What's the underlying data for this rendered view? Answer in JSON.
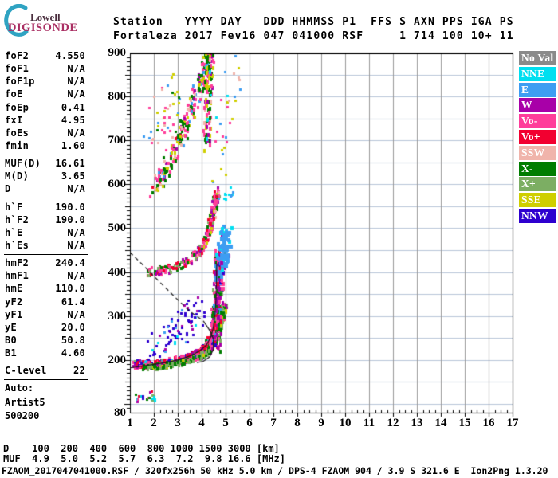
{
  "logo": {
    "line1": "Lowell",
    "line2": "DIGISONDE",
    "arc_color": "#2fa3c2"
  },
  "header": {
    "line1": "Station   YYYY DAY   DDD HHMMSS P1  FFS S AXN PPS IGA PS",
    "line2": "Fortaleza 2017 Fev16 047 041000 RSF     1 714 100 10+ 11"
  },
  "params": {
    "items": [
      {
        "label": "foF2",
        "value": "4.550"
      },
      {
        "label": "foF1",
        "value": "N/A"
      },
      {
        "label": "foF1p",
        "value": "N/A"
      },
      {
        "label": "foE",
        "value": "N/A"
      },
      {
        "label": "foEp",
        "value": "0.41"
      },
      {
        "label": "fxI",
        "value": "4.95"
      },
      {
        "label": "foEs",
        "value": "N/A"
      },
      {
        "label": "fmin",
        "value": "1.60"
      },
      {
        "rule": true
      },
      {
        "label": "MUF(D)",
        "value": "16.61"
      },
      {
        "label": "M(D)",
        "value": "3.65"
      },
      {
        "label": "D",
        "value": "N/A"
      },
      {
        "rule": true
      },
      {
        "label": "h`F",
        "value": "190.0"
      },
      {
        "label": "h`F2",
        "value": "190.0"
      },
      {
        "label": "h`E",
        "value": "N/A"
      },
      {
        "label": "h`Es",
        "value": "N/A"
      },
      {
        "rule": true
      },
      {
        "label": "hmF2",
        "value": "240.4"
      },
      {
        "label": "hmF1",
        "value": "N/A"
      },
      {
        "label": "hmE",
        "value": "110.0"
      },
      {
        "label": "yF2",
        "value": "61.4"
      },
      {
        "label": "yF1",
        "value": "N/A"
      },
      {
        "label": "yE",
        "value": "20.0"
      },
      {
        "label": "B0",
        "value": "50.8"
      },
      {
        "label": "B1",
        "value": "4.60"
      },
      {
        "rule": true
      },
      {
        "label": "C-level",
        "value": "22"
      },
      {
        "rule": true
      }
    ],
    "auto_block": [
      "Auto:",
      "Artist5",
      "500200"
    ]
  },
  "legend": {
    "items": [
      {
        "label": "No Val",
        "color": "#8a8a8a"
      },
      {
        "label": "NNE",
        "color": "#00dff0"
      },
      {
        "label": "E",
        "color": "#3d9df2"
      },
      {
        "label": "W",
        "color": "#a800a8"
      },
      {
        "label": "Vo-",
        "color": "#ff3d9a"
      },
      {
        "label": "Vo+",
        "color": "#f20030"
      },
      {
        "label": "SSW",
        "color": "#f0b4ab"
      },
      {
        "label": "X-",
        "color": "#007d00"
      },
      {
        "label": "X+",
        "color": "#7cae63"
      },
      {
        "label": "SSE",
        "color": "#cfcf00"
      },
      {
        "label": "NNW",
        "color": "#2e00cf"
      }
    ]
  },
  "chart_data": {
    "type": "scatter",
    "title": "Digisonde ionogram, Fortaleza, 2017 day 047 (Fev16) 04:10:00, RSF",
    "x_axis": {
      "unit": "[MHz]",
      "min": 1,
      "max": 17,
      "ticks": [
        1,
        2,
        3,
        4,
        5,
        6,
        7,
        8,
        9,
        10,
        11,
        12,
        13,
        14,
        15,
        16,
        17
      ]
    },
    "y_axis": {
      "unit": "[km]",
      "min": 80,
      "max": 900,
      "ticks": [
        900,
        800,
        700,
        600,
        500,
        400,
        300,
        200,
        80
      ]
    },
    "grid": {
      "h_step_km": 50,
      "v_step_mhz": 1,
      "h_color": "#b9c6d9",
      "v_color": "#9a9a9a"
    },
    "colors": {
      "NoVal": "#8a8a8a",
      "NNE": "#00dff0",
      "E": "#3d9df2",
      "W": "#a800a8",
      "Vo-": "#ff3d9a",
      "Vo+": "#f20030",
      "SSW": "#f0b4ab",
      "X-": "#007d00",
      "X+": "#7cae63",
      "SSE": "#cfcf00",
      "NNW": "#2e00cf"
    },
    "d_muf_table": {
      "d_km": [
        100,
        200,
        400,
        600,
        800,
        1000,
        1500,
        3000
      ],
      "muf_mhz": [
        4.9,
        5.0,
        5.2,
        5.7,
        6.3,
        7.2,
        9.8,
        16.6
      ]
    },
    "scatter_segments": [
      {
        "name": "f-trace-1hop-o",
        "path": [
          [
            1.2,
            190
          ],
          [
            1.6,
            189
          ],
          [
            2.1,
            191
          ],
          [
            2.6,
            195
          ],
          [
            3.1,
            200
          ],
          [
            3.6,
            208
          ],
          [
            3.95,
            218
          ],
          [
            4.2,
            230
          ],
          [
            4.4,
            248
          ],
          [
            4.5,
            272
          ],
          [
            4.58,
            300
          ],
          [
            4.62,
            330
          ]
        ],
        "h_spread": 16,
        "f_jitter": 0.12,
        "count": 430,
        "size": [
          3,
          4
        ],
        "colors": [
          [
            "Vo+",
            0.28
          ],
          [
            "Vo-",
            0.28
          ],
          [
            "W",
            0.1
          ],
          [
            "NNW",
            0.14
          ],
          [
            "NNE",
            0.05
          ],
          [
            "E",
            0.04
          ],
          [
            "X-",
            0.06
          ],
          [
            "X+",
            0.05
          ]
        ]
      },
      {
        "name": "f-trace-1hop-x",
        "path": [
          [
            1.45,
            183
          ],
          [
            2.0,
            184
          ],
          [
            2.6,
            188
          ],
          [
            3.2,
            194
          ],
          [
            3.7,
            202
          ],
          [
            4.1,
            212
          ],
          [
            4.45,
            230
          ],
          [
            4.7,
            258
          ],
          [
            4.85,
            295
          ],
          [
            4.95,
            330
          ]
        ],
        "h_spread": 12,
        "f_jitter": 0.1,
        "count": 300,
        "size": [
          3,
          4
        ],
        "colors": [
          [
            "X-",
            0.42
          ],
          [
            "X+",
            0.34
          ],
          [
            "SSE",
            0.1
          ],
          [
            "Vo-",
            0.07
          ],
          [
            "W",
            0.07
          ]
        ]
      },
      {
        "name": "blue-scatter-above-trace",
        "path": [
          [
            1.8,
            228
          ],
          [
            2.4,
            250
          ],
          [
            3.0,
            268
          ],
          [
            3.6,
            290
          ],
          [
            3.9,
            308
          ]
        ],
        "h_spread": 75,
        "f_jitter": 0.3,
        "count": 85,
        "size": [
          3,
          3
        ],
        "colors": [
          [
            "NNW",
            0.72
          ],
          [
            "W",
            0.12
          ],
          [
            "E",
            0.1
          ],
          [
            "NNE",
            0.06
          ]
        ]
      },
      {
        "name": "f-trace-2hop",
        "path": [
          [
            1.75,
            400
          ],
          [
            2.3,
            403
          ],
          [
            2.9,
            410
          ],
          [
            3.4,
            422
          ],
          [
            3.8,
            440
          ],
          [
            4.1,
            464
          ],
          [
            4.3,
            494
          ],
          [
            4.45,
            528
          ],
          [
            4.55,
            562
          ],
          [
            4.62,
            584
          ]
        ],
        "h_spread": 18,
        "f_jitter": 0.12,
        "count": 280,
        "size": [
          3,
          4
        ],
        "colors": [
          [
            "Vo-",
            0.34
          ],
          [
            "Vo+",
            0.16
          ],
          [
            "X-",
            0.2
          ],
          [
            "X+",
            0.1
          ],
          [
            "W",
            0.1
          ],
          [
            "SSW",
            0.05
          ],
          [
            "SSE",
            0.05
          ]
        ]
      },
      {
        "name": "cusp-spread-column",
        "path": [
          [
            4.55,
            215
          ],
          [
            4.6,
            265
          ],
          [
            4.63,
            315
          ],
          [
            4.67,
            365
          ],
          [
            4.72,
            405
          ],
          [
            4.77,
            435
          ]
        ],
        "h_spread": 45,
        "f_jitter": 0.22,
        "count": 230,
        "size": [
          3,
          5
        ],
        "colors": [
          [
            "W",
            0.28
          ],
          [
            "Vo-",
            0.3
          ],
          [
            "X-",
            0.16
          ],
          [
            "X+",
            0.1
          ],
          [
            "Vo+",
            0.06
          ],
          [
            "NNW",
            0.05
          ],
          [
            "E",
            0.05
          ]
        ]
      },
      {
        "name": "xmode-blue-cluster",
        "path": [
          [
            4.65,
            420
          ],
          [
            4.8,
            445
          ],
          [
            4.95,
            462
          ],
          [
            5.1,
            472
          ]
        ],
        "h_spread": 85,
        "f_jitter": 0.18,
        "count": 80,
        "size": [
          4,
          5
        ],
        "colors": [
          [
            "E",
            0.78
          ],
          [
            "NNE",
            0.12
          ],
          [
            "W",
            0.1
          ]
        ]
      },
      {
        "name": "cyan-top-dots",
        "path": [
          [
            4.8,
            565
          ],
          [
            5.1,
            575
          ],
          [
            5.35,
            585
          ]
        ],
        "h_spread": 25,
        "f_jitter": 0.15,
        "count": 12,
        "size": [
          3,
          3
        ],
        "colors": [
          [
            "NNE",
            0.7
          ],
          [
            "E",
            0.3
          ]
        ]
      },
      {
        "name": "upper-spread-diagonal",
        "path": [
          [
            1.9,
            580
          ],
          [
            2.3,
            615
          ],
          [
            2.7,
            655
          ],
          [
            3.05,
            700
          ],
          [
            3.4,
            745
          ],
          [
            3.7,
            790
          ],
          [
            3.95,
            835
          ],
          [
            4.15,
            870
          ],
          [
            4.35,
            895
          ]
        ],
        "h_spread": 38,
        "f_jitter": 0.18,
        "count": 250,
        "size": [
          3,
          4
        ],
        "colors": [
          [
            "Vo-",
            0.26
          ],
          [
            "X-",
            0.26
          ],
          [
            "SSE",
            0.18
          ],
          [
            "E",
            0.07
          ],
          [
            "SSW",
            0.08
          ],
          [
            "W",
            0.07
          ],
          [
            "Vo+",
            0.08
          ]
        ]
      },
      {
        "name": "upper-spread-column",
        "path": [
          [
            4.18,
            690
          ],
          [
            4.22,
            745
          ],
          [
            4.26,
            800
          ],
          [
            4.3,
            855
          ],
          [
            4.32,
            895
          ]
        ],
        "h_spread": 35,
        "f_jitter": 0.16,
        "count": 95,
        "size": [
          3,
          5
        ],
        "colors": [
          [
            "X-",
            0.28
          ],
          [
            "SSE",
            0.24
          ],
          [
            "Vo-",
            0.2
          ],
          [
            "W",
            0.1
          ],
          [
            "SSW",
            0.12
          ],
          [
            "NNE",
            0.06
          ]
        ]
      },
      {
        "name": "upper-strays-left",
        "path": [
          [
            2.0,
            700
          ],
          [
            2.5,
            760
          ],
          [
            3.0,
            820
          ]
        ],
        "h_spread": 120,
        "f_jitter": 0.5,
        "count": 45,
        "size": [
          3,
          3
        ],
        "colors": [
          [
            "Vo-",
            0.3
          ],
          [
            "SSE",
            0.25
          ],
          [
            "E",
            0.15
          ],
          [
            "SSW",
            0.15
          ],
          [
            "X-",
            0.15
          ]
        ]
      },
      {
        "name": "upper-strays-right",
        "path": [
          [
            4.6,
            640
          ],
          [
            4.9,
            720
          ],
          [
            5.2,
            800
          ],
          [
            5.5,
            860
          ]
        ],
        "h_spread": 90,
        "f_jitter": 0.35,
        "count": 30,
        "size": [
          3,
          3
        ],
        "colors": [
          [
            "SSW",
            0.3
          ],
          [
            "Vo-",
            0.25
          ],
          [
            "SSE",
            0.2
          ],
          [
            "E",
            0.15
          ],
          [
            "NNE",
            0.1
          ]
        ]
      },
      {
        "name": "e-region-dots",
        "path": [
          [
            1.15,
            112
          ],
          [
            1.5,
            115
          ],
          [
            1.85,
            118
          ],
          [
            2.05,
            115
          ]
        ],
        "h_spread": 22,
        "f_jitter": 0.1,
        "count": 24,
        "size": [
          3,
          3
        ],
        "colors": [
          [
            "Vo-",
            0.22
          ],
          [
            "X-",
            0.2
          ],
          [
            "NNE",
            0.2
          ],
          [
            "Vo+",
            0.12
          ],
          [
            "W",
            0.1
          ],
          [
            "X+",
            0.09
          ],
          [
            "NNW",
            0.07
          ]
        ]
      }
    ],
    "overlay_curves": [
      {
        "name": "profile-fit",
        "style": "solid",
        "points": [
          [
            1.0,
            182
          ],
          [
            1.5,
            186
          ],
          [
            2.0,
            190
          ],
          [
            2.5,
            194
          ],
          [
            3.0,
            200
          ],
          [
            3.5,
            209
          ],
          [
            3.9,
            220
          ],
          [
            4.2,
            234
          ],
          [
            4.4,
            254
          ],
          [
            4.5,
            278
          ],
          [
            4.56,
            305
          ],
          [
            4.6,
            340
          ],
          [
            4.62,
            382
          ],
          [
            4.63,
            420
          ]
        ]
      },
      {
        "name": "transmission-curve",
        "style": "dashed",
        "points": [
          [
            1.0,
            445
          ],
          [
            1.55,
            416
          ],
          [
            2.2,
            380
          ],
          [
            2.85,
            345
          ],
          [
            3.5,
            311
          ],
          [
            4.07,
            289
          ]
        ]
      },
      {
        "name": "transmission-curve-hook",
        "style": "solid",
        "points": [
          [
            4.07,
            289
          ],
          [
            4.33,
            268
          ],
          [
            4.5,
            247
          ],
          [
            4.5,
            225
          ],
          [
            4.33,
            207
          ],
          [
            4.07,
            197
          ],
          [
            3.8,
            194
          ]
        ]
      }
    ]
  },
  "footer": {
    "d_row": "D    100  200  400  600  800 1000 1500 3000 [km]",
    "muf_row": "MUF  4.9  5.0  5.2  5.7  6.3  7.2  9.8 16.6 [MHz]",
    "status_line": "FZAOM_2017047041000.RSF / 320fx256h 50 kHz 5.0 km / DPS-4 FZAOM 904 / 3.9 S 321.6 E  Ion2Png 1.3.20"
  }
}
